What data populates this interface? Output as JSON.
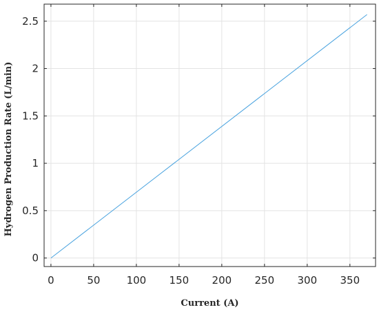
{
  "chart_data": {
    "type": "line",
    "title": "",
    "xlabel": "Current (A)",
    "ylabel": "Hydrogen  Production  Rate  (L/min)",
    "xlim": [
      -8,
      380
    ],
    "ylim": [
      -0.09,
      2.68
    ],
    "xticks": [
      0,
      50,
      100,
      150,
      200,
      250,
      300,
      350
    ],
    "xtick_labels": [
      "0",
      "50",
      "100",
      "150",
      "200",
      "250",
      "300",
      "350"
    ],
    "yticks": [
      0,
      0.5,
      1,
      1.5,
      2,
      2.5
    ],
    "ytick_labels": [
      "0",
      "0.5",
      "1",
      "1.5",
      "2",
      "2.5"
    ],
    "grid": true,
    "legend": "none",
    "series": [
      {
        "x": [
          0,
          370
        ],
        "y": [
          0,
          2.57
        ],
        "color": "#4aa3df"
      }
    ],
    "colors": {
      "axis": "#262626",
      "grid": "#e3e3e3",
      "line": "#4aa3df"
    }
  }
}
